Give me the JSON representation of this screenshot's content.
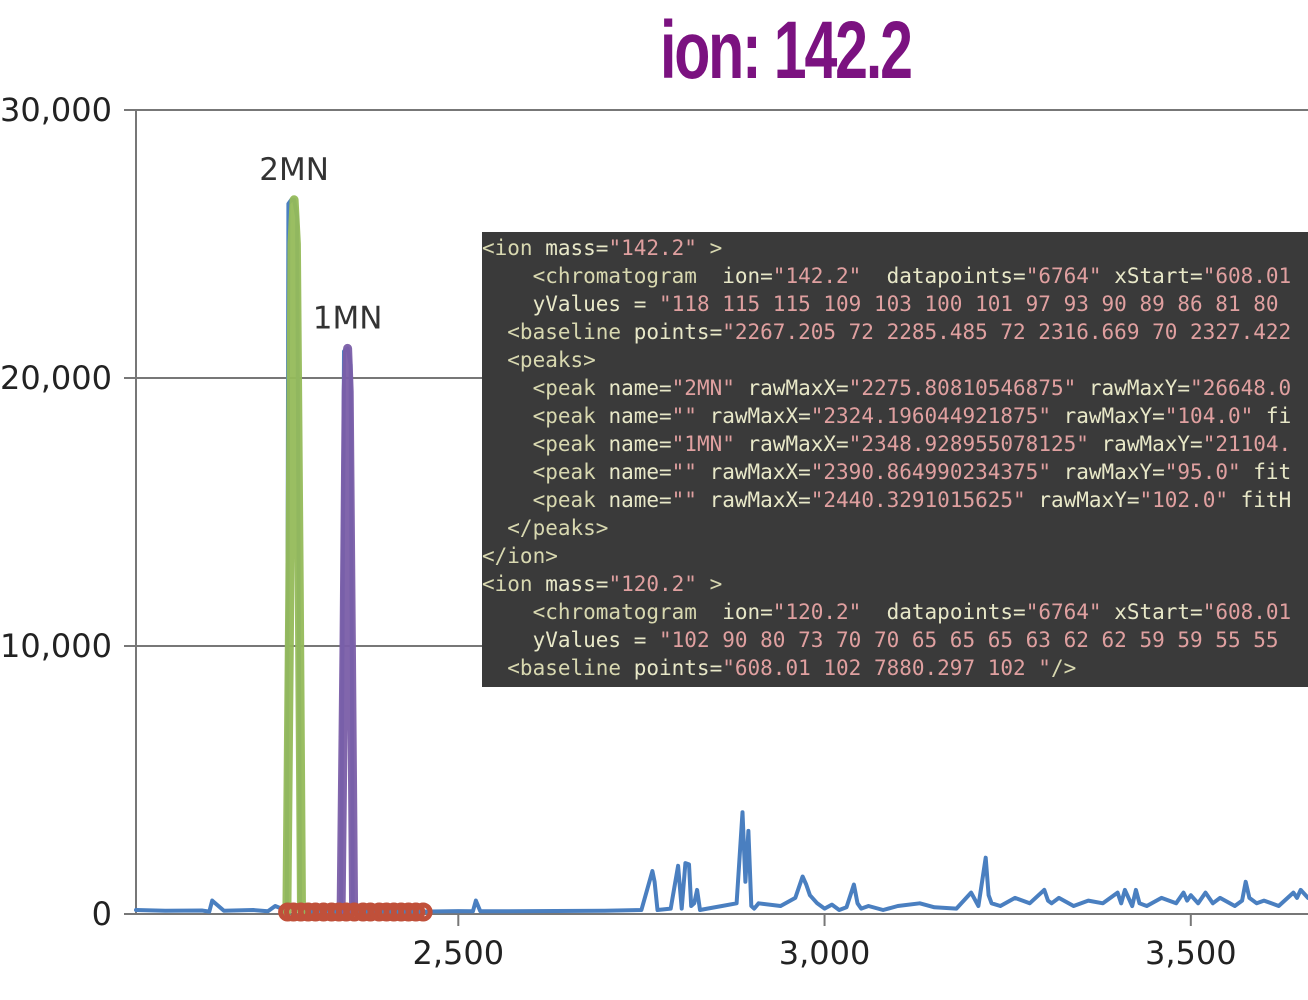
{
  "title": "ion: 142.2",
  "colors": {
    "title": "#7b1280",
    "main_trace": "#4a7fc0",
    "peak_2mn": "#95bb5a",
    "peak_1mn": "#7a5ea8",
    "baseline_markers": "#c0503a",
    "grid": "#777777",
    "xml_background": "#3a3a3a",
    "xml_text": "#e6e6c8",
    "xml_value": "#e0a0a0"
  },
  "chart_data": {
    "type": "line",
    "title": "ion: 142.2",
    "xlim": [
      2060,
      3660
    ],
    "ylim": [
      0,
      30000
    ],
    "yticks": [
      0,
      10000,
      20000,
      30000
    ],
    "ytick_labels": [
      "0",
      "10,000",
      "20,000",
      "30,000"
    ],
    "xticks": [
      2500,
      3000,
      3500
    ],
    "xtick_labels": [
      "2,500",
      "3,000",
      "3,500"
    ],
    "grid": "horizontal",
    "peak_labels": [
      {
        "name": "2MN",
        "x": 2275.8,
        "y": 26648
      },
      {
        "name": "1MN",
        "x": 2348.9,
        "y": 21104
      }
    ],
    "series": [
      {
        "name": "chromatogram",
        "x": [
          2060,
          2100,
          2150,
          2160,
          2164,
          2180,
          2220,
          2240,
          2250,
          2266,
          2268,
          2272,
          2275.8,
          2280,
          2284,
          2286,
          2300,
          2320,
          2340,
          2344,
          2348.9,
          2353,
          2356,
          2370,
          2400,
          2450,
          2500,
          2520,
          2524,
          2530,
          2600,
          2700,
          2750,
          2765,
          2768,
          2772,
          2790,
          2800,
          2805,
          2810,
          2815,
          2818,
          2822,
          2826,
          2830,
          2840,
          2860,
          2880,
          2888,
          2892,
          2896,
          2900,
          2904,
          2910,
          2940,
          2960,
          2970,
          2975,
          2980,
          2990,
          3000,
          3010,
          3020,
          3030,
          3040,
          3045,
          3050,
          3060,
          3080,
          3100,
          3130,
          3150,
          3180,
          3200,
          3210,
          3220,
          3224,
          3228,
          3240,
          3260,
          3280,
          3300,
          3305,
          3310,
          3320,
          3340,
          3360,
          3380,
          3400,
          3405,
          3410,
          3420,
          3425,
          3430,
          3440,
          3460,
          3480,
          3490,
          3495,
          3500,
          3510,
          3520,
          3530,
          3540,
          3560,
          3570,
          3575,
          3580,
          3590,
          3600,
          3620,
          3640,
          3645,
          3650,
          3660
        ],
        "y": [
          150,
          120,
          130,
          90,
          500,
          120,
          150,
          100,
          300,
          120,
          26500,
          26648,
          26648,
          26000,
          120,
          100,
          110,
          120,
          110,
          21000,
          21104,
          20500,
          120,
          110,
          100,
          90,
          110,
          100,
          500,
          100,
          110,
          120,
          150,
          1600,
          1200,
          150,
          200,
          1800,
          200,
          1900,
          1850,
          300,
          400,
          900,
          150,
          200,
          300,
          400,
          3800,
          1200,
          3100,
          300,
          200,
          400,
          300,
          600,
          1400,
          1100,
          700,
          400,
          200,
          350,
          150,
          250,
          1100,
          400,
          200,
          300,
          150,
          300,
          400,
          250,
          200,
          800,
          300,
          2100,
          700,
          400,
          300,
          600,
          400,
          900,
          500,
          400,
          600,
          300,
          500,
          400,
          800,
          400,
          900,
          300,
          900,
          400,
          300,
          600,
          400,
          800,
          500,
          700,
          400,
          800,
          400,
          600,
          300,
          500,
          1200,
          600,
          400,
          500,
          300,
          800,
          600,
          900,
          600
        ]
      },
      {
        "name": "2MN",
        "x": [
          2266,
          2270,
          2273,
          2275.8,
          2279,
          2283,
          2286
        ],
        "y": [
          100,
          12000,
          25000,
          26648,
          25000,
          12000,
          100
        ]
      },
      {
        "name": "1MN",
        "x": [
          2340,
          2344,
          2347,
          2348.9,
          2351,
          2354,
          2357
        ],
        "y": [
          100,
          10000,
          19500,
          21104,
          19500,
          10000,
          100
        ]
      }
    ],
    "baseline_points": [
      2267,
      2275,
      2285,
      2295,
      2305,
      2316,
      2327,
      2337,
      2347,
      2358,
      2370,
      2380,
      2392,
      2402,
      2412,
      2422,
      2432,
      2442,
      2452
    ]
  },
  "xml_lines": [
    [
      [
        "tag",
        "<ion "
      ],
      [
        "attr",
        "mass="
      ],
      [
        "val",
        "\"142.2\""
      ],
      [
        "tag",
        " >"
      ]
    ],
    [
      [
        "tag",
        "    <chromatogram  "
      ],
      [
        "attr",
        "ion="
      ],
      [
        "val",
        "\"142.2\""
      ],
      [
        "attr",
        "  datapoints="
      ],
      [
        "val",
        "\"6764\""
      ],
      [
        "attr",
        " xStart="
      ],
      [
        "val",
        "\"608.01"
      ]
    ],
    [
      [
        "attr",
        "    yValues = "
      ],
      [
        "val",
        "\"118 115 115 109 103 100 101 97 93 90 89 86 81 80"
      ]
    ],
    [
      [
        "tag",
        "  <baseline "
      ],
      [
        "attr",
        "points="
      ],
      [
        "val",
        "\"2267.205 72 2285.485 72 2316.669 70 2327.422"
      ]
    ],
    [
      [
        "tag",
        "  <peaks>"
      ]
    ],
    [
      [
        "tag",
        "    <peak "
      ],
      [
        "attr",
        "name="
      ],
      [
        "val",
        "\"2MN\""
      ],
      [
        "attr",
        " rawMaxX="
      ],
      [
        "val",
        "\"2275.80810546875\""
      ],
      [
        "attr",
        " rawMaxY="
      ],
      [
        "val",
        "\"26648.0"
      ]
    ],
    [
      [
        "tag",
        "    <peak "
      ],
      [
        "attr",
        "name="
      ],
      [
        "val",
        "\"\""
      ],
      [
        "attr",
        " rawMaxX="
      ],
      [
        "val",
        "\"2324.196044921875\""
      ],
      [
        "attr",
        " rawMaxY="
      ],
      [
        "val",
        "\"104.0\""
      ],
      [
        "attr",
        " fi"
      ]
    ],
    [
      [
        "tag",
        "    <peak "
      ],
      [
        "attr",
        "name="
      ],
      [
        "val",
        "\"1MN\""
      ],
      [
        "attr",
        " rawMaxX="
      ],
      [
        "val",
        "\"2348.928955078125\""
      ],
      [
        "attr",
        " rawMaxY="
      ],
      [
        "val",
        "\"21104."
      ]
    ],
    [
      [
        "tag",
        "    <peak "
      ],
      [
        "attr",
        "name="
      ],
      [
        "val",
        "\"\""
      ],
      [
        "attr",
        " rawMaxX="
      ],
      [
        "val",
        "\"2390.864990234375\""
      ],
      [
        "attr",
        " rawMaxY="
      ],
      [
        "val",
        "\"95.0\""
      ],
      [
        "attr",
        " fit"
      ]
    ],
    [
      [
        "tag",
        "    <peak "
      ],
      [
        "attr",
        "name="
      ],
      [
        "val",
        "\"\""
      ],
      [
        "attr",
        " rawMaxX="
      ],
      [
        "val",
        "\"2440.3291015625\""
      ],
      [
        "attr",
        " rawMaxY="
      ],
      [
        "val",
        "\"102.0\""
      ],
      [
        "attr",
        " fitH"
      ]
    ],
    [
      [
        "tag",
        "  </peaks>"
      ]
    ],
    [
      [
        "tag",
        "</ion>"
      ]
    ],
    [
      [
        "tag",
        "<ion "
      ],
      [
        "attr",
        "mass="
      ],
      [
        "val",
        "\"120.2\""
      ],
      [
        "tag",
        " >"
      ]
    ],
    [
      [
        "tag",
        "    <chromatogram  "
      ],
      [
        "attr",
        "ion="
      ],
      [
        "val",
        "\"120.2\""
      ],
      [
        "attr",
        "  datapoints="
      ],
      [
        "val",
        "\"6764\""
      ],
      [
        "attr",
        " xStart="
      ],
      [
        "val",
        "\"608.01"
      ]
    ],
    [
      [
        "attr",
        "    yValues = "
      ],
      [
        "val",
        "\"102 90 80 73 70 70 65 65 65 63 62 62 59 59 55 55"
      ]
    ],
    [
      [
        "tag",
        "  <baseline "
      ],
      [
        "attr",
        "points="
      ],
      [
        "val",
        "\"608.01 102 7880.297 102 \""
      ],
      [
        "tag",
        "/>"
      ]
    ]
  ]
}
